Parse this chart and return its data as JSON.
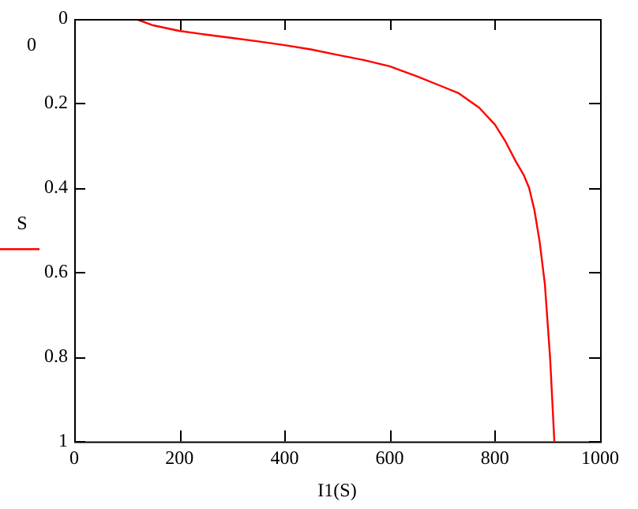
{
  "chart_data": {
    "type": "line",
    "xlabel": "I1(S)",
    "ylabel": "S",
    "series": [
      {
        "color": "#ff0000",
        "x": [
          117,
          150,
          199,
          250,
          300,
          350,
          400,
          450,
          500,
          550,
          600,
          650,
          700,
          730,
          770,
          800,
          820,
          840,
          855,
          865,
          875,
          885,
          895,
          905,
          913
        ],
        "values": [
          0,
          0.015,
          0.028,
          0.037,
          0.045,
          0.053,
          0.062,
          0.072,
          0.085,
          0.097,
          0.112,
          0.135,
          0.16,
          0.175,
          0.21,
          0.25,
          0.29,
          0.338,
          0.37,
          0.4,
          0.452,
          0.527,
          0.628,
          0.804,
          1.0
        ]
      }
    ],
    "xlim": [
      0,
      1000
    ],
    "xticks": [
      0,
      200,
      400,
      600,
      800,
      1000
    ],
    "ylim": [
      1,
      0
    ],
    "yticks": [
      0,
      0.2,
      0.4,
      0.6,
      0.8,
      1
    ],
    "annotations": [
      "0"
    ],
    "grid": false,
    "legend": false,
    "marker": "none",
    "line_style": "solid"
  }
}
